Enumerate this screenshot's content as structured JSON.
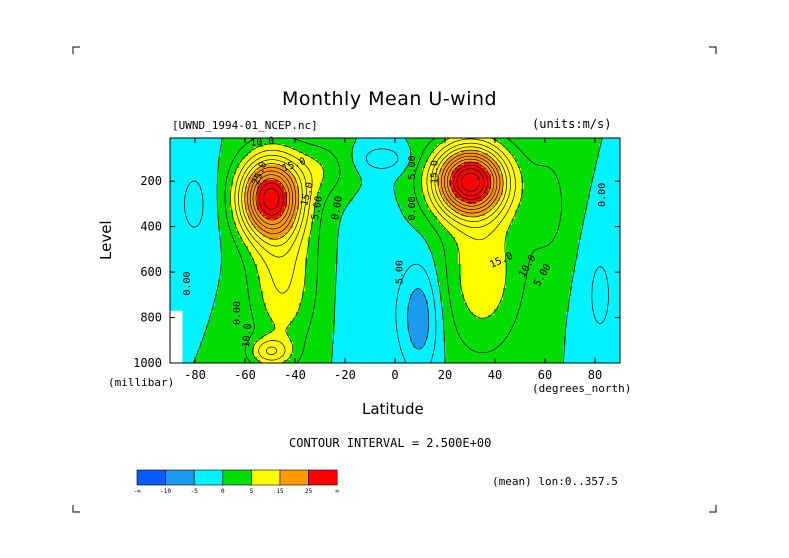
{
  "chart_data": {
    "type": "contour",
    "title": "Monthly Mean U-wind",
    "dataset_label": "[UWND_1994-01_NCEP.nc]",
    "units_label": "(units:m/s)",
    "xlabel": "Latitude",
    "ylabel": "Level",
    "x_unit_label": "(degrees_north)",
    "y_unit_label": "(millibar)",
    "xlim": [
      -90,
      90
    ],
    "ylim": [
      1000,
      10
    ],
    "x_ticks": [
      -80,
      -60,
      -40,
      -20,
      0,
      20,
      40,
      60,
      80
    ],
    "y_ticks": [
      200,
      400,
      600,
      800,
      1000
    ],
    "contour_interval_text": "CONTOUR INTERVAL = 2.500E+00",
    "contour_interval": 2.5,
    "mean_label": "(mean) lon:0..357.5",
    "colorbar": {
      "colors": [
        "#0b5cff",
        "#1a9bf0",
        "#00f2ff",
        "#00dd00",
        "#ffff00",
        "#ff9900",
        "#ff0000"
      ],
      "labels": [
        "-∞",
        "-10",
        "-5",
        "0",
        "5",
        "15",
        "25",
        "∞"
      ]
    },
    "contour_labels": [
      {
        "text": "25.0",
        "lat": -53,
        "level": 170,
        "rot": -70
      },
      {
        "text": "15.0",
        "lat": -40,
        "level": 140,
        "rot": -20
      },
      {
        "text": "15.0",
        "lat": -34,
        "level": 260,
        "rot": -75
      },
      {
        "text": "5.00",
        "lat": -30,
        "level": 320,
        "rot": -80
      },
      {
        "text": "0.00",
        "lat": -22,
        "level": 320,
        "rot": -80
      },
      {
        "text": "10.0",
        "lat": -53,
        "level": 40,
        "rot": -5
      },
      {
        "text": "0.00",
        "lat": -82,
        "level": 650,
        "rot": -90
      },
      {
        "text": "0.00",
        "lat": -62,
        "level": 780,
        "rot": -90
      },
      {
        "text": "10.0",
        "lat": -58,
        "level": 880,
        "rot": -85
      },
      {
        "text": "5.00",
        "lat": 8,
        "level": 140,
        "rot": -90
      },
      {
        "text": "15.0",
        "lat": 17,
        "level": 160,
        "rot": -90
      },
      {
        "text": "0.00",
        "lat": 8,
        "level": 320,
        "rot": -90
      },
      {
        "text": "5.00",
        "lat": 3,
        "level": 600,
        "rot": -90
      },
      {
        "text": "15.0",
        "lat": 43,
        "level": 560,
        "rot": -25
      },
      {
        "text": "10.0",
        "lat": 54,
        "level": 580,
        "rot": -60
      },
      {
        "text": "5.00",
        "lat": 60,
        "level": 620,
        "rot": -60
      },
      {
        "text": "0.00",
        "lat": 84,
        "level": 260,
        "rot": -90
      }
    ]
  }
}
